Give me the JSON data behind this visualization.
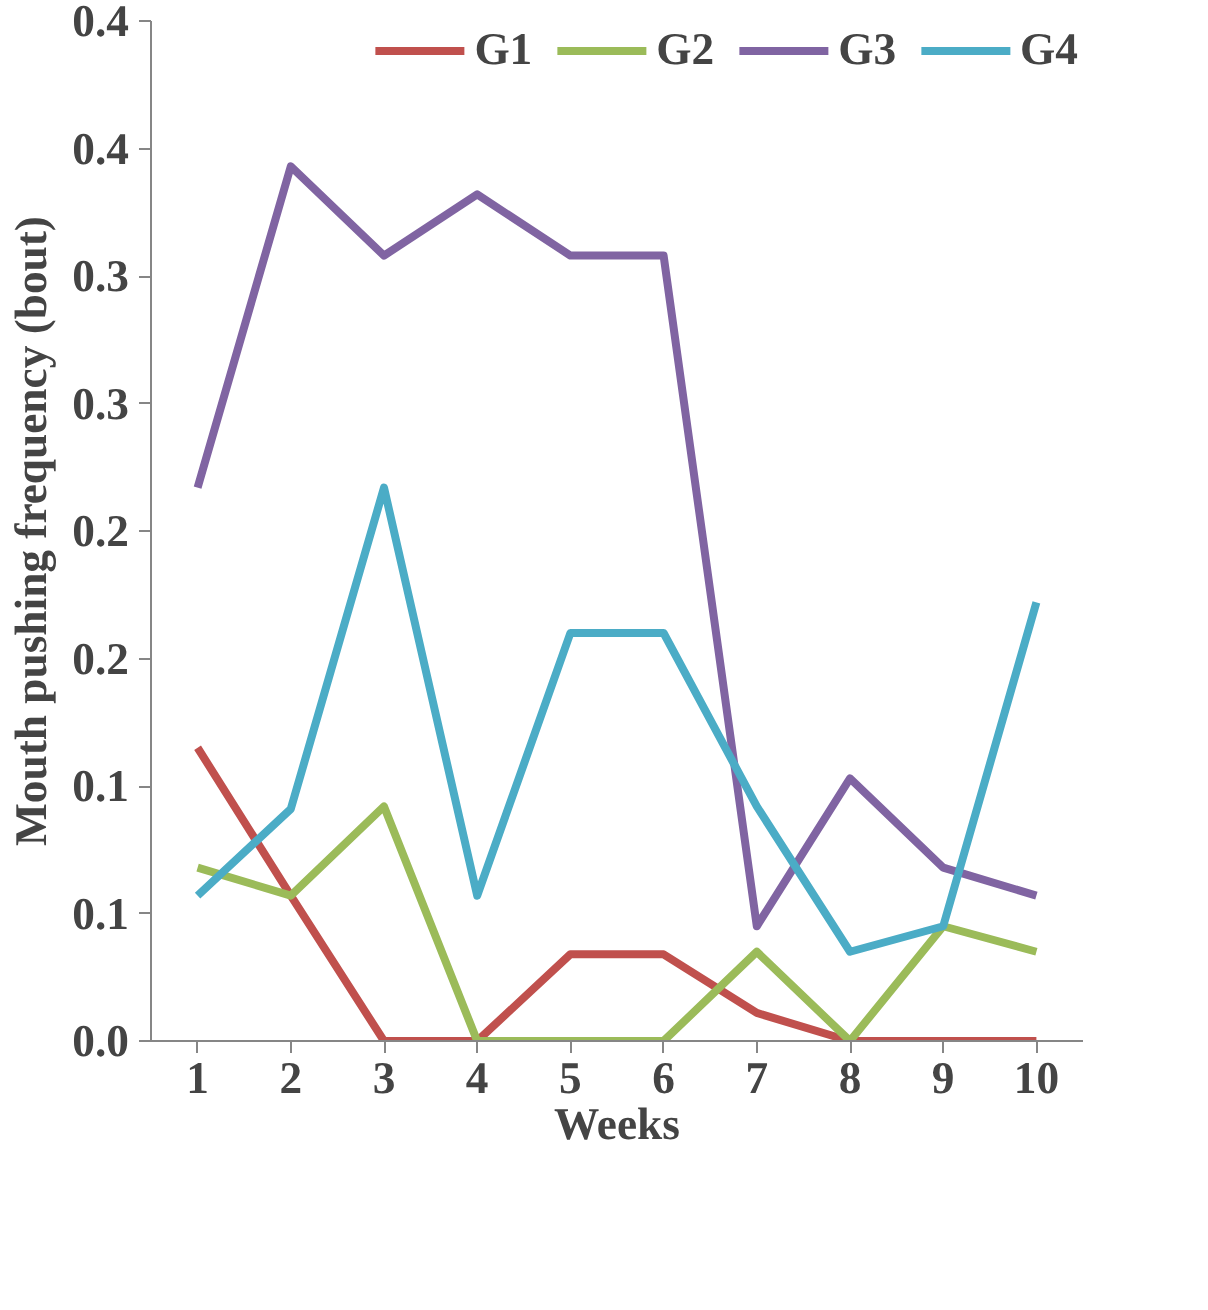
{
  "chart_data": {
    "type": "line",
    "xlabel": "Weeks",
    "ylabel": "Mouth pushing frequency (bout)",
    "categories": [
      "1",
      "2",
      "3",
      "4",
      "5",
      "6",
      "7",
      "8",
      "9",
      "10"
    ],
    "series": [
      {
        "name": "G1",
        "color": "#c0504d",
        "values": [
          0.115,
          0.057,
          0,
          0,
          0.034,
          0.034,
          0.011,
          0,
          0,
          0
        ]
      },
      {
        "name": "G2",
        "color": "#9bbb59",
        "values": [
          0.068,
          0.057,
          0.092,
          0,
          0,
          0,
          0.035,
          0,
          0.045,
          0.035
        ]
      },
      {
        "name": "G3",
        "color": "#8064a2",
        "values": [
          0.217,
          0.343,
          0.308,
          0.332,
          0.308,
          0.308,
          0.045,
          0.103,
          0.068,
          0.057
        ]
      },
      {
        "name": "G4",
        "color": "#4bacc6",
        "values": [
          0.057,
          0.091,
          0.217,
          0.057,
          0.16,
          0.16,
          0.092,
          0.035,
          0.045,
          0.172
        ]
      }
    ],
    "ylim": [
      0,
      0.4
    ],
    "yticks": [
      {
        "value": 0,
        "label": "0.0"
      },
      {
        "value": 0.05,
        "label": "0.1"
      },
      {
        "value": 0.1,
        "label": "0.1"
      },
      {
        "value": 0.15,
        "label": "0.2"
      },
      {
        "value": 0.2,
        "label": "0.2"
      },
      {
        "value": 0.25,
        "label": "0.3"
      },
      {
        "value": 0.3,
        "label": "0.3"
      },
      {
        "value": 0.35,
        "label": "0.4"
      },
      {
        "value": 0.4,
        "label": "0.4"
      }
    ],
    "grid": false,
    "legend": "top",
    "marker": "none",
    "line_style": "solid"
  }
}
